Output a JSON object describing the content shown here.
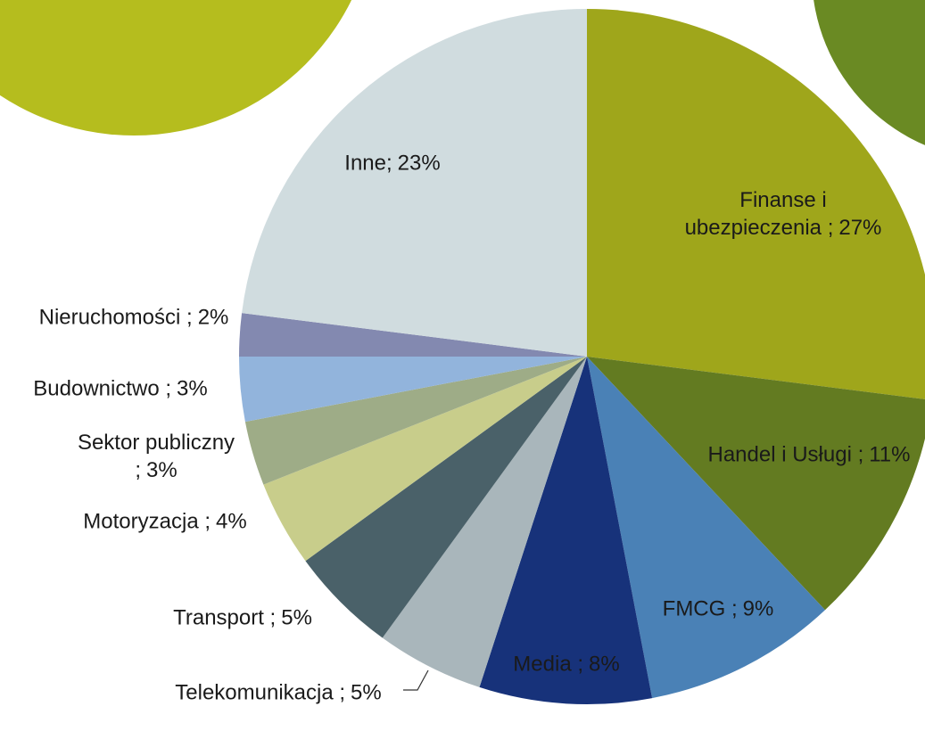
{
  "chart_data": {
    "type": "pie",
    "categories": [
      "Finanse i ubezpieczenia ;",
      "Handel i Usługi ;",
      "FMCG ;",
      "Media ;",
      "Telekomunikacja ;",
      "Transport ;",
      "Motoryzacja ;",
      "Sektor publiczny ;",
      "Budownictwo ;",
      "Nieruchomości ;",
      "Inne;"
    ],
    "values": [
      27,
      11,
      9,
      8,
      5,
      5,
      4,
      3,
      3,
      2,
      23
    ],
    "value_labels": [
      "27%",
      "11%",
      "9%",
      "8%",
      "5%",
      "5%",
      "4%",
      "3%",
      "3%",
      "2%",
      "23%"
    ],
    "colors": [
      "#9fa61b",
      "#637b21",
      "#4a81b6",
      "#17327a",
      "#a9b6bb",
      "#4a6169",
      "#c8cd8b",
      "#9eac87",
      "#92b4dc",
      "#8389b0",
      "#d0dcdf"
    ]
  }
}
